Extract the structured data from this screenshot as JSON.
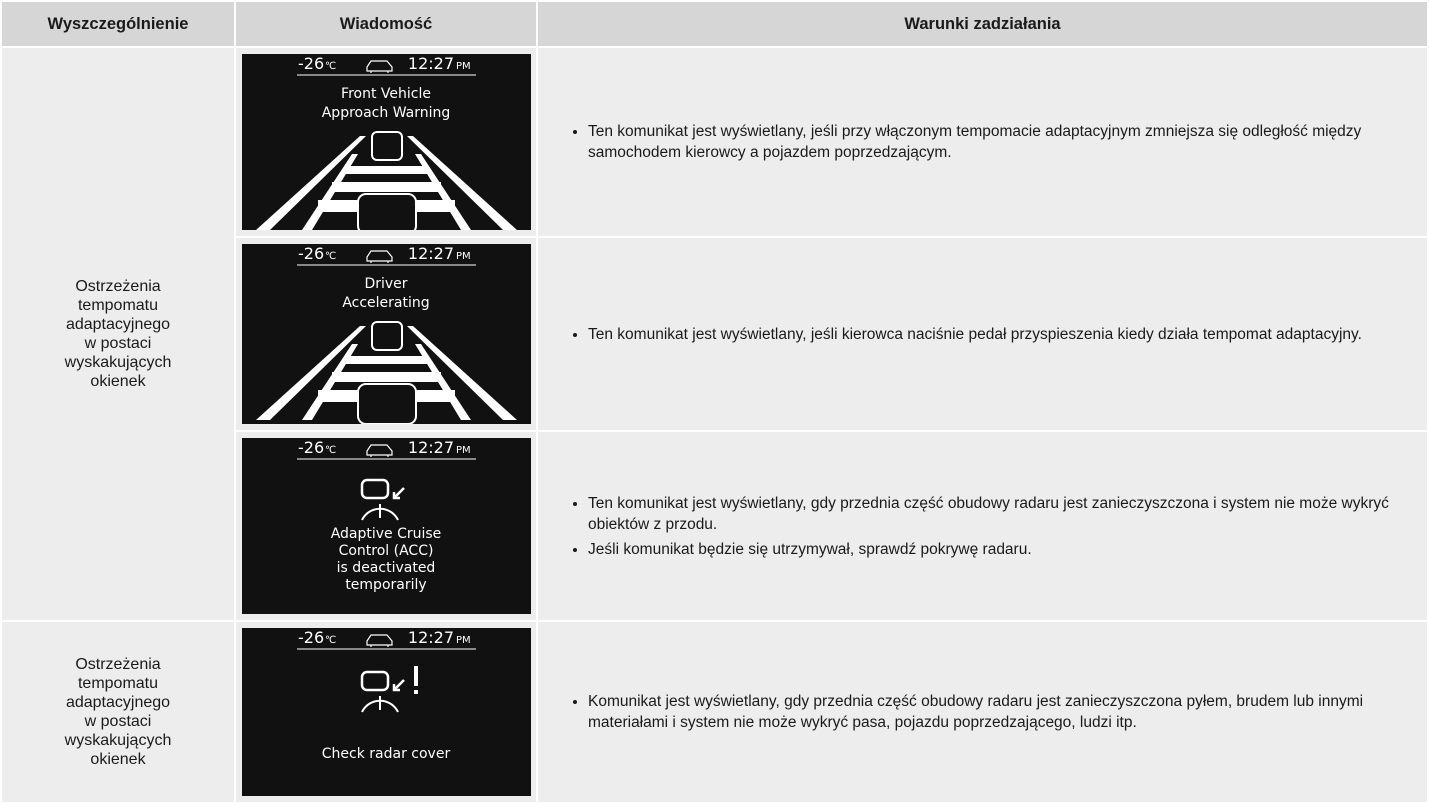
{
  "header": [
    "Wyszczególnienie",
    "Wiadomość",
    "Warunki zadziałania"
  ],
  "groups": [
    {
      "item": [
        "Ostrzeżenia",
        "tempomatu",
        "adaptacyjnego",
        "w postaci",
        "wyskakujących",
        "okienek"
      ],
      "rows": [
        {
          "screen": {
            "temp": "-26",
            "unit": "℃",
            "time": "12:27",
            "ampm": "PM",
            "message": [
              "Front Vehicle",
              "Approach Warning"
            ]
          },
          "conditions": [
            "Ten komunikat jest wyświetlany, jeśli przy włączonym tempomacie adaptacyjnym zmniejsza się odległość między samochodem kierowcy a pojazdem poprzedzającym."
          ]
        },
        {
          "screen": {
            "temp": "-26",
            "unit": "℃",
            "time": "12:27",
            "ampm": "PM",
            "message": [
              "Driver",
              "Accelerating"
            ]
          },
          "conditions": [
            "Ten komunikat jest wyświetlany, jeśli kierowca naciśnie pedał przyspieszenia kiedy działa tempomat adaptacyjny."
          ]
        },
        {
          "screen": {
            "temp": "-26",
            "unit": "℃",
            "time": "12:27",
            "ampm": "PM",
            "message": [
              "Adaptive Cruise",
              "Control (ACC)",
              "is deactivated",
              "temporarily"
            ]
          },
          "conditions": [
            "Ten komunikat jest wyświetlany, gdy przednia część obudowy radaru jest zanieczyszczona i system nie może wykryć obiektów z przodu.",
            "Jeśli komunikat będzie się utrzymywał, sprawdź pokrywę radaru."
          ]
        }
      ]
    },
    {
      "item": [
        "Ostrzeżenia",
        "tempomatu",
        "adaptacyjnego",
        "w postaci",
        "wyskakujących",
        "okienek"
      ],
      "rows": [
        {
          "screen": {
            "temp": "-26",
            "unit": "℃",
            "time": "12:27",
            "ampm": "PM",
            "message": [
              "Check radar cover"
            ]
          },
          "conditions": [
            "Komunikat jest wyświetlany, gdy przednia część obudowy radaru jest zanieczyszczona pyłem, brudem lub innymi materiałami i system nie może wykryć pasa, pojazdu poprzedzającego, ludzi itp."
          ]
        }
      ]
    }
  ]
}
